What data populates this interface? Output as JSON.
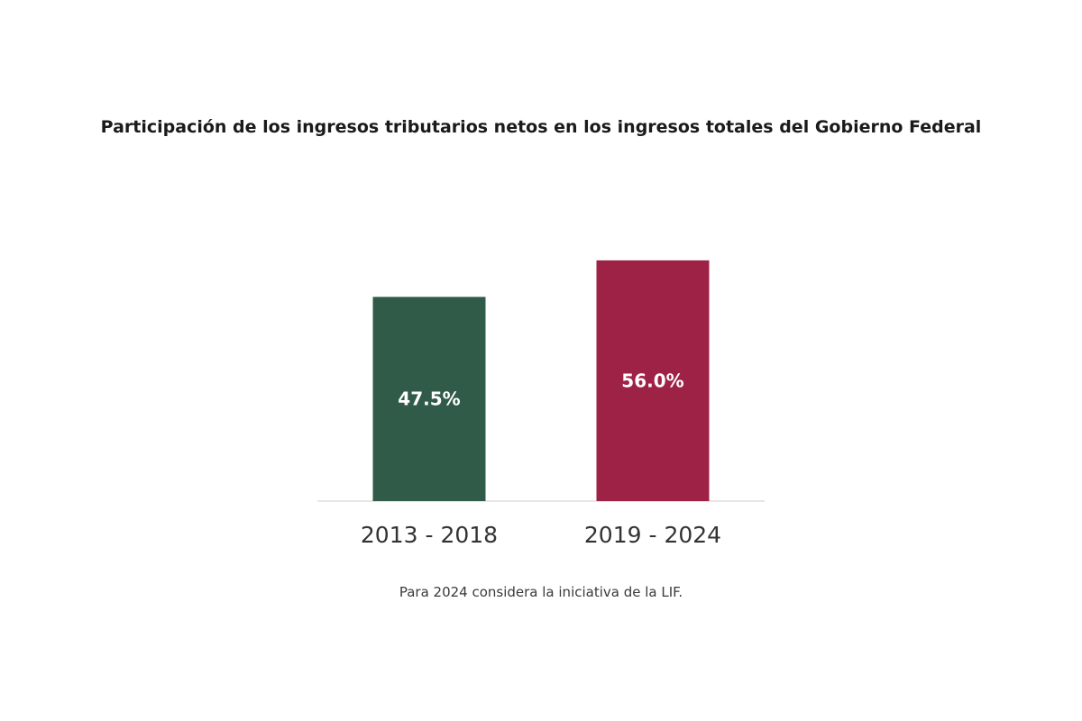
{
  "chart_data": {
    "type": "bar",
    "title": "Participación de los ingresos tributarios netos en los ingresos totales del Gobierno Federal",
    "categories": [
      "2013 - 2018",
      "2019 - 2024"
    ],
    "values": [
      47.5,
      56.0
    ],
    "value_labels": [
      "47.5%",
      "56.0%"
    ],
    "colors": [
      "#2f5b48",
      "#9e2146"
    ],
    "ylim": [
      0,
      60.8
    ],
    "grid": false,
    "legend": "none",
    "note": "Para 2024 considera la iniciativa de la LIF."
  }
}
